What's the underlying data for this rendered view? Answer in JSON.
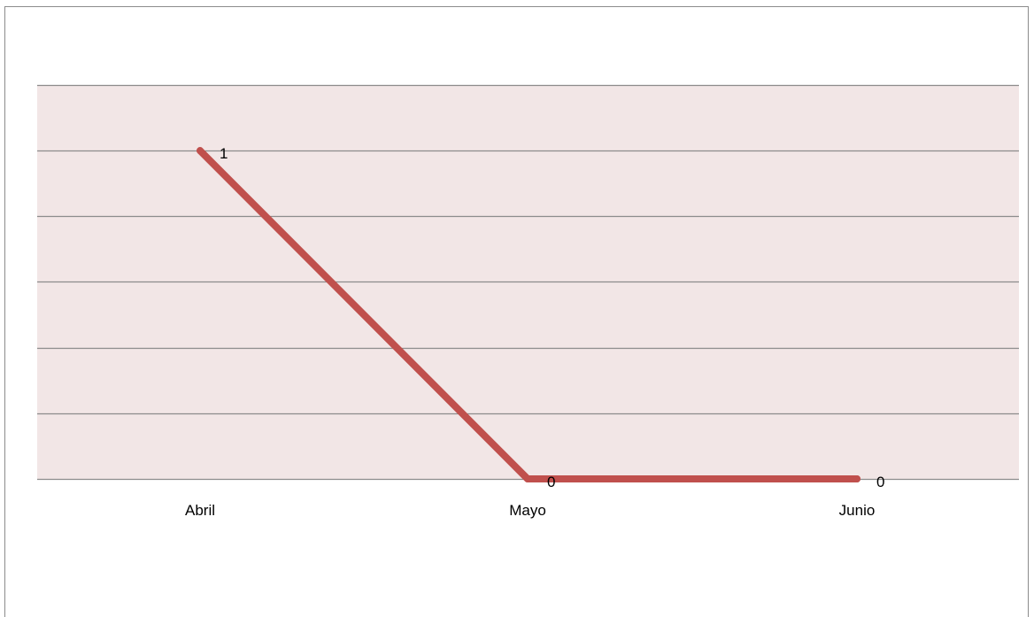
{
  "chart_data": {
    "type": "line",
    "categories": [
      "Abril",
      "Mayo",
      "Junio"
    ],
    "series": [
      {
        "values": [
          1,
          0,
          0
        ],
        "data_labels": [
          "1",
          "0",
          "0"
        ]
      }
    ],
    "title": "",
    "xlabel": "",
    "ylabel": "",
    "ylim": [
      0,
      1.2
    ],
    "y_gridline_step": 0.2,
    "grid": true,
    "legend": "none",
    "colors": {
      "plot_background": "#f2e6e6",
      "gridline": "#8c8c8c",
      "line": "#c0504d",
      "frame_border": "#8c8c8c"
    }
  }
}
